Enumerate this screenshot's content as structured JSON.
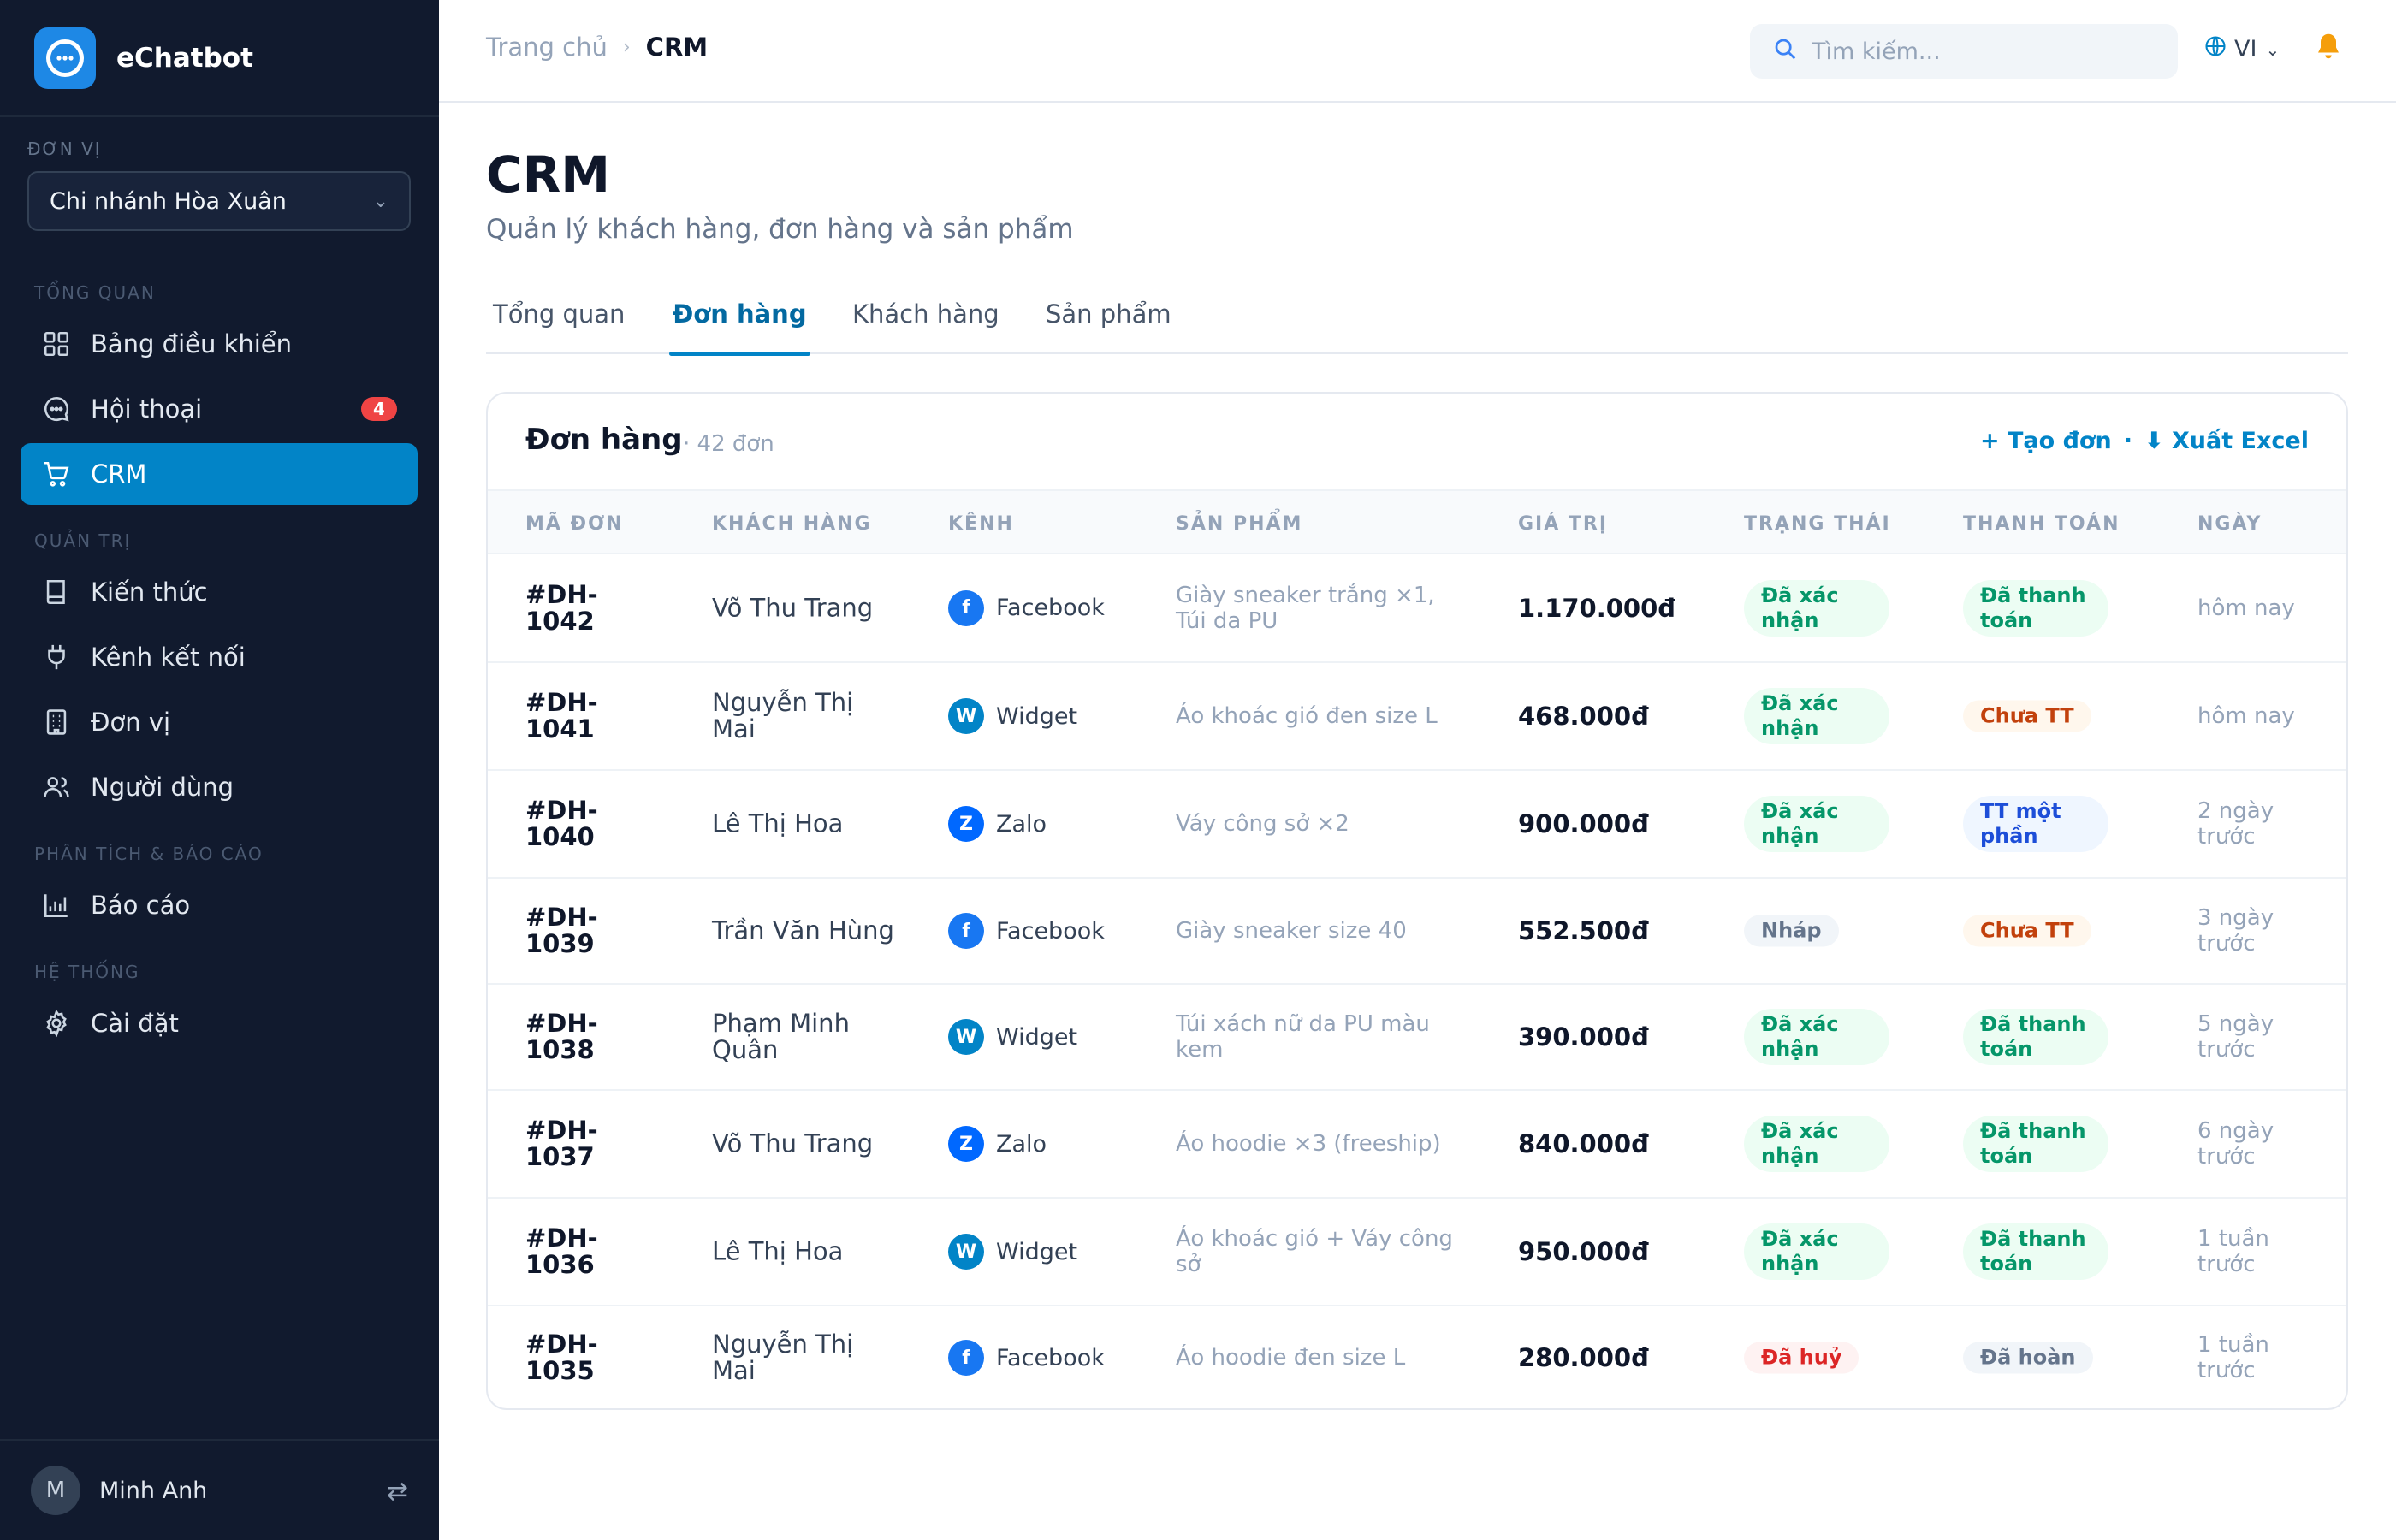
{
  "app": {
    "name": "eChatbot"
  },
  "sidebar": {
    "unit_label": "ĐƠN VỊ",
    "unit_value": "Chi nhánh Hòa Xuân",
    "sections": {
      "overview": "TỔNG QUAN",
      "admin": "QUẢN TRỊ",
      "analytics": "PHÂN TÍCH & BÁO CÁO",
      "system": "HỆ THỐNG"
    },
    "items": {
      "dashboard": {
        "label": "Bảng điều khiển",
        "icon": "grid-icon"
      },
      "conversations": {
        "label": "Hội thoại",
        "icon": "chat-icon",
        "badge": "4"
      },
      "crm": {
        "label": "CRM",
        "icon": "cart-icon"
      },
      "knowledge": {
        "label": "Kiến thức",
        "icon": "book-icon"
      },
      "channels": {
        "label": "Kênh kết nối",
        "icon": "plug-icon"
      },
      "units": {
        "label": "Đơn vị",
        "icon": "building-icon"
      },
      "users": {
        "label": "Người dùng",
        "icon": "users-icon"
      },
      "reports": {
        "label": "Báo cáo",
        "icon": "chart-icon"
      },
      "settings": {
        "label": "Cài đặt",
        "icon": "gear-icon"
      }
    },
    "active": "crm",
    "user": {
      "initial": "M",
      "name": "Minh Anh"
    }
  },
  "topbar": {
    "breadcrumb_home": "Trang chủ",
    "breadcrumb_current": "CRM",
    "search_placeholder": "Tìm kiếm...",
    "language": "VI"
  },
  "page": {
    "title": "CRM",
    "subtitle": "Quản lý khách hàng, đơn hàng và sản phẩm",
    "tabs": [
      "Tổng quan",
      "Đơn hàng",
      "Khách hàng",
      "Sản phẩm"
    ],
    "active_tab": "Đơn hàng"
  },
  "orders": {
    "title": "Đơn hàng",
    "count": "· 42 đơn",
    "create_label": "+ Tạo đơn",
    "export_label": "⬇ Xuất Excel",
    "columns": [
      "MÃ ĐƠN",
      "KHÁCH HÀNG",
      "KÊNH",
      "SẢN PHẨM",
      "GIÁ TRỊ",
      "TRẠNG THÁI",
      "THANH TOÁN",
      "NGÀY"
    ],
    "rows": [
      {
        "id": "#DH-1042",
        "customer": "Võ Thu Trang",
        "channel": "Facebook",
        "channel_letter": "f",
        "product": "Giày sneaker trắng ×1, Túi da PU",
        "value": "1.170.000đ",
        "status": "Đã xác nhận",
        "payment": "Đã thanh toán",
        "date": "hôm nay"
      },
      {
        "id": "#DH-1041",
        "customer": "Nguyễn Thị Mai",
        "channel": "Widget",
        "channel_letter": "W",
        "product": "Áo khoác gió đen size L",
        "value": "468.000đ",
        "status": "Đã xác nhận",
        "payment": "Chưa TT",
        "date": "hôm nay"
      },
      {
        "id": "#DH-1040",
        "customer": "Lê Thị Hoa",
        "channel": "Zalo",
        "channel_letter": "Z",
        "product": "Váy công sở ×2",
        "value": "900.000đ",
        "status": "Đã xác nhận",
        "payment": "TT một phần",
        "date": "2 ngày trước"
      },
      {
        "id": "#DH-1039",
        "customer": "Trần Văn Hùng",
        "channel": "Facebook",
        "channel_letter": "f",
        "product": "Giày sneaker size 40",
        "value": "552.500đ",
        "status": "Nháp",
        "payment": "Chưa TT",
        "date": "3 ngày trước"
      },
      {
        "id": "#DH-1038",
        "customer": "Phạm Minh Quân",
        "channel": "Widget",
        "channel_letter": "W",
        "product": "Túi xách nữ da PU màu kem",
        "value": "390.000đ",
        "status": "Đã xác nhận",
        "payment": "Đã thanh toán",
        "date": "5 ngày trước"
      },
      {
        "id": "#DH-1037",
        "customer": "Võ Thu Trang",
        "channel": "Zalo",
        "channel_letter": "Z",
        "product": "Áo hoodie ×3 (freeship)",
        "value": "840.000đ",
        "status": "Đã xác nhận",
        "payment": "Đã thanh toán",
        "date": "6 ngày trước"
      },
      {
        "id": "#DH-1036",
        "customer": "Lê Thị Hoa",
        "channel": "Widget",
        "channel_letter": "W",
        "product": "Áo khoác gió + Váy công sở",
        "value": "950.000đ",
        "status": "Đã xác nhận",
        "payment": "Đã thanh toán",
        "date": "1 tuần trước"
      },
      {
        "id": "#DH-1035",
        "customer": "Nguyễn Thị Mai",
        "channel": "Facebook",
        "channel_letter": "f",
        "product": "Áo hoodie đen size L",
        "value": "280.000đ",
        "status": "Đã huỷ",
        "payment": "Đã hoàn",
        "date": "1 tuần trước"
      }
    ]
  },
  "colors": {
    "sidebar_bg": "#111a2e",
    "accent": "#0284c7",
    "status_green": "#059669",
    "status_amber": "#c2410c",
    "status_red": "#dc2626"
  }
}
